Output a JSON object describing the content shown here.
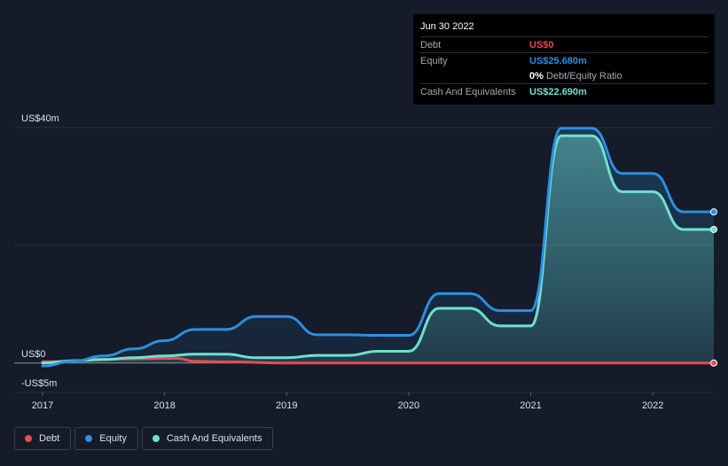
{
  "colors": {
    "background": "#151b28",
    "debt": "#e64c52",
    "equity": "#2b8fe0",
    "cash": "#71e0cf",
    "grid": "#2a303b",
    "axis_text": "#dfe2e6"
  },
  "tooltip": {
    "date": "Jun 30 2022",
    "rows": [
      {
        "label": "Debt",
        "value": "US$0"
      },
      {
        "label": "Equity",
        "value": "US$25.680m"
      },
      {
        "label": "",
        "value": "0%",
        "suffix": "Debt/Equity Ratio"
      },
      {
        "label": "Cash And Equivalents",
        "value": "US$22.690m"
      }
    ]
  },
  "legend": [
    {
      "label": "Debt",
      "color_key": "debt"
    },
    {
      "label": "Equity",
      "color_key": "equity"
    },
    {
      "label": "Cash And Equivalents",
      "color_key": "cash"
    }
  ],
  "chart_data": {
    "type": "line",
    "title": "",
    "xlabel": "",
    "ylabel": "",
    "unit": "US$m",
    "ylim": [
      -5,
      40
    ],
    "xlim": [
      2017.0,
      2022.5
    ],
    "y_tick_labels": [
      {
        "value": 40,
        "label": "US$40m"
      },
      {
        "value": 0,
        "label": "US$0"
      },
      {
        "value": -5,
        "label": "-US$5m"
      }
    ],
    "gridlines": [
      40,
      20,
      0
    ],
    "x_ticks": [
      "2017",
      "2018",
      "2019",
      "2020",
      "2021",
      "2022"
    ],
    "series": [
      {
        "name": "Debt",
        "color_key": "debt",
        "x": [
          2017.0,
          2017.75,
          2018.1,
          2018.25,
          2018.5,
          2019.0,
          2020.0,
          2021.0,
          2022.0,
          2022.5
        ],
        "values": [
          0.2,
          0.7,
          0.8,
          0.3,
          0.2,
          0.0,
          0.0,
          0.0,
          0.0,
          0.0
        ]
      },
      {
        "name": "Equity",
        "color_key": "equity",
        "x": [
          2017.0,
          2017.25,
          2017.5,
          2017.75,
          2018.0,
          2018.25,
          2018.5,
          2018.75,
          2019.0,
          2019.25,
          2019.5,
          2019.75,
          2020.0,
          2020.25,
          2020.5,
          2020.75,
          2021.0,
          2021.25,
          2021.5,
          2021.75,
          2022.0,
          2022.25,
          2022.5
        ],
        "values": [
          -0.5,
          0.3,
          1.2,
          2.4,
          3.8,
          5.7,
          5.7,
          7.9,
          7.9,
          4.8,
          4.8,
          4.7,
          4.7,
          11.8,
          11.8,
          8.9,
          8.9,
          39.9,
          39.9,
          32.2,
          32.2,
          25.68,
          25.68
        ]
      },
      {
        "name": "Cash And Equivalents",
        "color_key": "cash",
        "x": [
          2017.0,
          2017.25,
          2017.5,
          2017.75,
          2018.0,
          2018.25,
          2018.5,
          2018.75,
          2019.0,
          2019.25,
          2019.5,
          2019.75,
          2020.0,
          2020.25,
          2020.5,
          2020.75,
          2021.0,
          2021.25,
          2021.5,
          2021.75,
          2022.0,
          2022.25,
          2022.5
        ],
        "values": [
          0.0,
          0.4,
          0.6,
          0.9,
          1.2,
          1.5,
          1.5,
          0.9,
          0.9,
          1.3,
          1.3,
          2.0,
          2.0,
          9.3,
          9.3,
          6.3,
          6.3,
          38.6,
          38.6,
          29.1,
          29.1,
          22.69,
          22.69
        ]
      }
    ]
  }
}
